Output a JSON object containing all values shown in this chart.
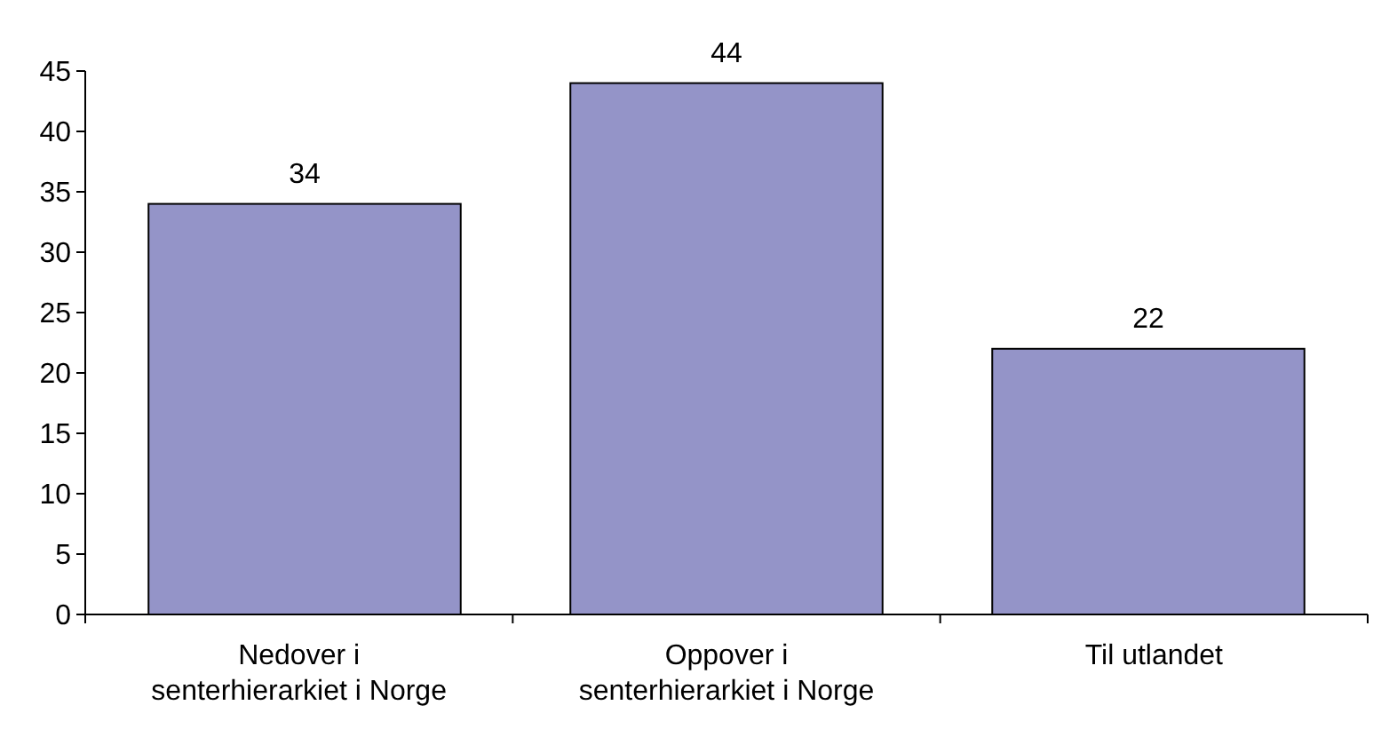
{
  "chart_data": {
    "type": "bar",
    "categories": [
      "Nedover i senterhierarkiet i Norge",
      "Oppover i senterhierarkiet i Norge",
      "Til utlandet"
    ],
    "values": [
      34,
      44,
      22
    ],
    "color": "#9494c8",
    "ylim": [
      0,
      45
    ],
    "yticks": [
      0,
      5,
      10,
      15,
      20,
      25,
      30,
      35,
      40,
      45
    ],
    "grid": false,
    "data_labels": true
  }
}
